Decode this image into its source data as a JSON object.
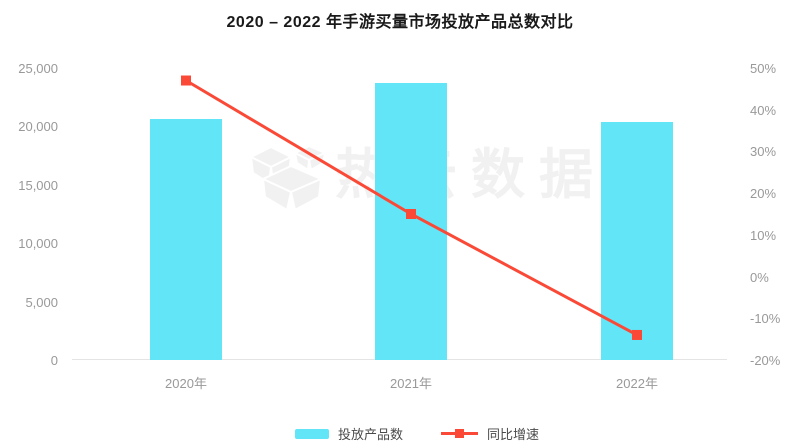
{
  "title": "2020 – 2022 年手游买量市场投放产品总数对比",
  "watermark": {
    "text": "热云数据"
  },
  "colors": {
    "bar": "#62e5f7",
    "line": "#fa4a37",
    "axis_text": "#999999",
    "axis_line": "#e4e4e4",
    "title_text": "#1a1a1a",
    "legend_text": "#4a4a4a",
    "watermark": "#f1f1f1",
    "background": "#ffffff"
  },
  "chart_data": {
    "type": "bar",
    "title": "2020 – 2022 年手游买量市场投放产品总数对比",
    "categories": [
      "2020年",
      "2021年",
      "2022年"
    ],
    "series": [
      {
        "name": "投放产品数",
        "type": "bar",
        "yaxis": "left",
        "values": [
          20600,
          23700,
          20400
        ]
      },
      {
        "name": "同比增速",
        "type": "line",
        "yaxis": "right",
        "unit": "%",
        "values": [
          47,
          15,
          -14
        ]
      }
    ],
    "left_axis": {
      "min": 0,
      "max": 25000,
      "tick_step": 5000,
      "ticks": [
        "0",
        "5,000",
        "10,000",
        "15,000",
        "20,000",
        "25,000"
      ]
    },
    "right_axis": {
      "min": -20,
      "max": 50,
      "tick_step": 10,
      "ticks": [
        "-20%",
        "-10%",
        "0%",
        "10%",
        "20%",
        "30%",
        "40%",
        "50%"
      ]
    },
    "grid": false,
    "legend_position": "bottom",
    "xlabel": "",
    "ylabel": ""
  }
}
